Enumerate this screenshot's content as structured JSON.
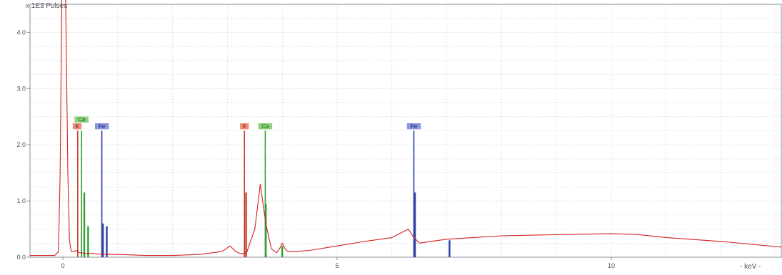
{
  "chart_data": {
    "type": "line",
    "title": "",
    "ylabel": "x 1E3 Pulses",
    "xlabel": "- keV -",
    "xlim": [
      -0.6,
      13.1
    ],
    "ylim": [
      0,
      4.5
    ],
    "x_ticks": [
      0,
      5,
      10
    ],
    "y_ticks": [
      0.0,
      1.0,
      2.0,
      3.0,
      4.0
    ],
    "x_tick_labels": [
      "0",
      "5",
      "10"
    ],
    "y_tick_labels": [
      "0.0",
      "1.0",
      "2.0",
      "3.0",
      "4.0"
    ],
    "grid": true,
    "series": [
      {
        "kind": "spectrum",
        "color": "#d21f1f",
        "x": [
          -0.6,
          -0.15,
          -0.08,
          -0.05,
          -0.02,
          0.0,
          0.05,
          0.09,
          0.12,
          0.15,
          0.2,
          0.25,
          0.3,
          0.4,
          0.5,
          0.6,
          0.8,
          1.0,
          1.5,
          2.0,
          2.5,
          2.9,
          3.05,
          3.15,
          3.25,
          3.35,
          3.5,
          3.6,
          3.7,
          3.8,
          3.9,
          3.95,
          4.0,
          4.05,
          4.1,
          4.2,
          4.5,
          5.0,
          5.5,
          6.0,
          6.2,
          6.3,
          6.4,
          6.45,
          6.5,
          6.7,
          7.0,
          7.5,
          8.0,
          9.0,
          10.0,
          10.5,
          11.0,
          12.0,
          13.1
        ],
        "y": [
          0.03,
          0.03,
          0.1,
          1.5,
          4.6,
          4.6,
          4.6,
          1.5,
          0.3,
          0.1,
          0.1,
          0.12,
          0.08,
          0.07,
          0.07,
          0.06,
          0.05,
          0.05,
          0.03,
          0.03,
          0.05,
          0.1,
          0.2,
          0.1,
          0.06,
          0.08,
          0.5,
          1.3,
          0.6,
          0.15,
          0.08,
          0.15,
          0.25,
          0.15,
          0.1,
          0.1,
          0.12,
          0.2,
          0.28,
          0.35,
          0.45,
          0.5,
          0.35,
          0.3,
          0.25,
          0.28,
          0.32,
          0.35,
          0.38,
          0.4,
          0.42,
          0.4,
          0.35,
          0.28,
          0.18
        ]
      }
    ],
    "element_lines": [
      {
        "element": "K",
        "x": 0.27,
        "height": 2.25,
        "color": "#c8402a"
      },
      {
        "element": "Ca",
        "x": 0.34,
        "height": 2.25,
        "color": "#2e9e32"
      },
      {
        "element": "Fe",
        "x": 0.71,
        "height": 2.25,
        "color": "#2e3fa6"
      },
      {
        "element": "K",
        "x": 3.31,
        "height": 2.25,
        "color": "#c8402a"
      },
      {
        "element": "Ca",
        "x": 3.69,
        "height": 2.25,
        "color": "#2e9e32"
      },
      {
        "element": "Fe",
        "x": 6.4,
        "height": 2.25,
        "color": "#2e3fa6"
      }
    ],
    "labels": [
      {
        "text": "Ca",
        "x": 0.34,
        "y": 2.45,
        "bg": "#8fd17a",
        "color": "#1e5f17"
      },
      {
        "text": "K",
        "x": 0.26,
        "y": 2.33,
        "bg": "#f08f7a",
        "color": "#6a1d10"
      },
      {
        "text": "Fe",
        "x": 0.71,
        "y": 2.33,
        "bg": "#8a96e0",
        "color": "#1c2370"
      },
      {
        "text": "K",
        "x": 3.31,
        "y": 2.33,
        "bg": "#f08f7a",
        "color": "#6a1d10"
      },
      {
        "text": "Ca",
        "x": 3.69,
        "y": 2.33,
        "bg": "#8fd17a",
        "color": "#1e5f17"
      },
      {
        "text": "Fe",
        "x": 6.4,
        "y": 2.33,
        "bg": "#8a96e0",
        "color": "#1c2370"
      }
    ],
    "minor_lines": [
      {
        "x": 0.39,
        "height": 1.15,
        "color": "#2e9e32"
      },
      {
        "x": 0.46,
        "height": 0.55,
        "color": "#2e9e32"
      },
      {
        "x": 0.73,
        "height": 0.6,
        "color": "#2e3fa6"
      },
      {
        "x": 0.8,
        "height": 0.55,
        "color": "#2e3fa6"
      },
      {
        "x": 3.34,
        "height": 1.15,
        "color": "#c8402a"
      },
      {
        "x": 3.7,
        "height": 0.95,
        "color": "#2e9e32"
      },
      {
        "x": 4.0,
        "height": 0.2,
        "color": "#2e9e32"
      },
      {
        "x": 6.42,
        "height": 1.15,
        "color": "#2e3fa6"
      },
      {
        "x": 7.05,
        "height": 0.3,
        "color": "#2e3fa6"
      }
    ],
    "colors": {
      "spectrum": "#d21f1f",
      "grid": "#cfd3d8",
      "frame": "#8a8f96"
    }
  }
}
